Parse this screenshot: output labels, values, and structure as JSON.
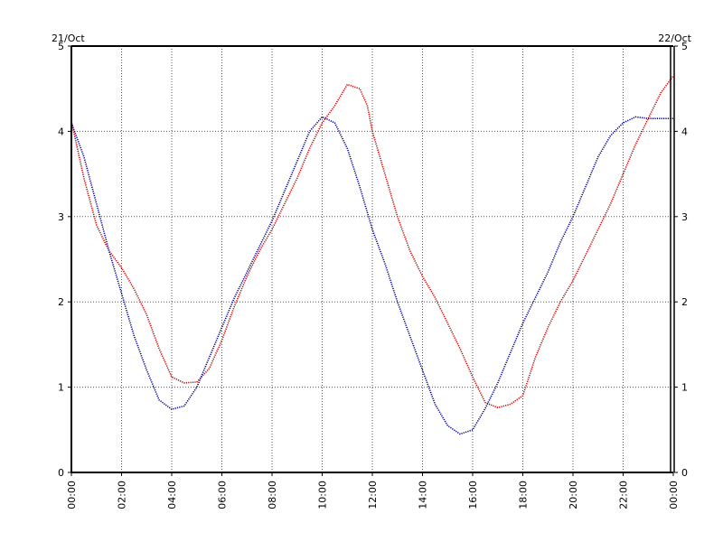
{
  "chart_data": {
    "type": "line",
    "title": "",
    "xlabel": "",
    "ylabel": "",
    "date_labels": {
      "start": "21/Oct",
      "end": "22/Oct"
    },
    "x_ticks": [
      "00:00",
      "02:00",
      "04:00",
      "06:00",
      "08:00",
      "10:00",
      "12:00",
      "14:00",
      "16:00",
      "18:00",
      "20:00",
      "22:00",
      "00:00"
    ],
    "y_ticks": [
      "0",
      "1",
      "2",
      "3",
      "4",
      "5"
    ],
    "xlim": [
      0,
      24
    ],
    "ylim": [
      0,
      5
    ],
    "grid": true,
    "legend": "none",
    "series": [
      {
        "color": "#cc0000",
        "style": "dotted",
        "x": [
          0,
          0.5,
          1,
          1.5,
          2,
          2.5,
          3,
          3.5,
          4,
          4.5,
          5,
          5.5,
          6,
          6.5,
          7,
          7.5,
          8,
          8.5,
          9,
          9.5,
          10,
          10.5,
          11,
          11.5,
          11.8,
          12,
          12.5,
          13,
          13.5,
          14,
          14.5,
          15,
          15.5,
          16,
          16.5,
          17,
          17.5,
          18,
          18.5,
          19,
          19.5,
          20,
          20.5,
          21,
          21.5,
          22,
          22.5,
          23,
          23.5,
          24
        ],
        "y": [
          4.12,
          3.45,
          2.9,
          2.6,
          2.4,
          2.15,
          1.85,
          1.45,
          1.12,
          1.05,
          1.06,
          1.22,
          1.55,
          1.95,
          2.3,
          2.6,
          2.85,
          3.15,
          3.45,
          3.8,
          4.1,
          4.3,
          4.55,
          4.5,
          4.3,
          4.0,
          3.5,
          3.0,
          2.6,
          2.3,
          2.05,
          1.75,
          1.45,
          1.12,
          0.82,
          0.76,
          0.8,
          0.9,
          1.35,
          1.7,
          2.0,
          2.25,
          2.55,
          2.85,
          3.15,
          3.5,
          3.85,
          4.15,
          4.45,
          4.65
        ]
      },
      {
        "color": "#000099",
        "style": "dotted",
        "x": [
          0,
          0.5,
          1,
          1.5,
          2,
          2.5,
          3,
          3.5,
          4,
          4.5,
          5,
          5.5,
          6,
          6.5,
          7,
          7.5,
          8,
          8.5,
          9,
          9.5,
          10,
          10.5,
          11,
          11.5,
          12,
          12.5,
          13,
          13.5,
          14,
          14.5,
          15,
          15.5,
          16,
          16.5,
          17,
          17.5,
          18,
          18.5,
          19,
          19.5,
          20,
          20.5,
          21,
          21.5,
          22,
          22.5,
          23,
          23.5,
          24
        ],
        "y": [
          4.1,
          3.7,
          3.15,
          2.6,
          2.1,
          1.6,
          1.2,
          0.85,
          0.74,
          0.78,
          1.0,
          1.35,
          1.7,
          2.05,
          2.35,
          2.65,
          2.95,
          3.3,
          3.65,
          4.0,
          4.17,
          4.1,
          3.8,
          3.35,
          2.85,
          2.45,
          2.0,
          1.6,
          1.2,
          0.8,
          0.55,
          0.45,
          0.5,
          0.75,
          1.05,
          1.4,
          1.75,
          2.05,
          2.35,
          2.7,
          3.0,
          3.35,
          3.7,
          3.95,
          4.1,
          4.17,
          4.15,
          4.15,
          4.15
        ]
      }
    ]
  }
}
